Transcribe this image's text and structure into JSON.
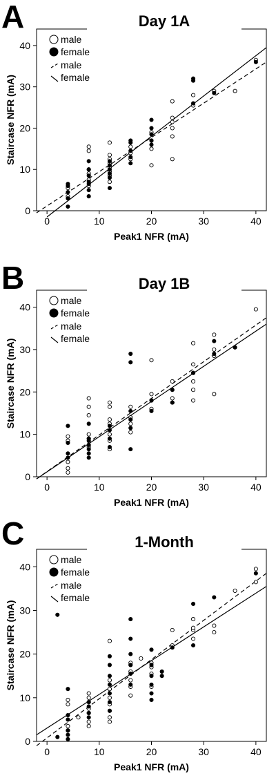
{
  "chart_data": [
    {
      "type": "scatter",
      "panel_label": "A",
      "title": "Day 1A",
      "xlabel": "Peak1 NFR (mA)",
      "ylabel": "Staircase NFR (mA)",
      "xlim": [
        -2,
        42
      ],
      "ylim": [
        0,
        44
      ],
      "xticks": [
        "0",
        "10",
        "20",
        "30",
        "40"
      ],
      "yticks": [
        "0",
        "10",
        "20",
        "30",
        "40"
      ],
      "legend": [
        "male",
        "female",
        "male",
        "female"
      ],
      "series": [
        {
          "name": "male",
          "marker": "open-circle",
          "points": [
            [
              4,
              3.5
            ],
            [
              4,
              5.5
            ],
            [
              8,
              6
            ],
            [
              8,
              7.5
            ],
            [
              8,
              9
            ],
            [
              8,
              10
            ],
            [
              8,
              14.5
            ],
            [
              8,
              15.5
            ],
            [
              12,
              7
            ],
            [
              12,
              8.5
            ],
            [
              12,
              9.5
            ],
            [
              12,
              10.5
            ],
            [
              12,
              11.5
            ],
            [
              12,
              12.5
            ],
            [
              12,
              13.5
            ],
            [
              12,
              16.5
            ],
            [
              16,
              12.5
            ],
            [
              16,
              14
            ],
            [
              16,
              15.5
            ],
            [
              20,
              11
            ],
            [
              20,
              15
            ],
            [
              20,
              17
            ],
            [
              20,
              19
            ],
            [
              24,
              12.5
            ],
            [
              24,
              18
            ],
            [
              24,
              20
            ],
            [
              24,
              21.5
            ],
            [
              24,
              22.5
            ],
            [
              24,
              26.5
            ],
            [
              28,
              25.5
            ],
            [
              28,
              28
            ],
            [
              32,
              29
            ],
            [
              36,
              29
            ],
            [
              40,
              36.5
            ]
          ]
        },
        {
          "name": "female",
          "marker": "filled-circle",
          "points": [
            [
              4,
              1
            ],
            [
              4,
              3
            ],
            [
              4,
              4.5
            ],
            [
              4,
              6
            ],
            [
              4,
              6.5
            ],
            [
              8,
              3.5
            ],
            [
              8,
              5
            ],
            [
              8,
              6.5
            ],
            [
              8,
              7
            ],
            [
              8,
              8.5
            ],
            [
              8,
              10
            ],
            [
              8,
              12
            ],
            [
              12,
              5.5
            ],
            [
              12,
              8
            ],
            [
              12,
              9
            ],
            [
              12,
              10
            ],
            [
              12,
              11
            ],
            [
              12,
              12
            ],
            [
              16,
              11.5
            ],
            [
              16,
              13
            ],
            [
              16,
              14.5
            ],
            [
              16,
              16.5
            ],
            [
              16,
              17
            ],
            [
              20,
              16
            ],
            [
              20,
              17
            ],
            [
              20,
              18.5
            ],
            [
              20,
              20
            ],
            [
              20,
              22
            ],
            [
              28,
              26
            ],
            [
              28,
              31.5
            ],
            [
              28,
              32
            ],
            [
              32,
              28.5
            ],
            [
              40,
              36
            ]
          ]
        }
      ],
      "fit_lines": [
        {
          "name": "male",
          "style": "dashed",
          "x": [
            -2,
            42
          ],
          "y": [
            -0.5,
            36
          ]
        },
        {
          "name": "female",
          "style": "solid",
          "x": [
            0,
            42
          ],
          "y": [
            -1.5,
            39.5
          ]
        }
      ]
    },
    {
      "type": "scatter",
      "panel_label": "B",
      "title": "Day 1B",
      "xlabel": "Peak1 NFR (mA)",
      "ylabel": "Staircase NFR (mA)",
      "xlim": [
        -2,
        42
      ],
      "ylim": [
        0,
        44
      ],
      "xticks": [
        "0",
        "10",
        "20",
        "30",
        "40"
      ],
      "yticks": [
        "0",
        "10",
        "20",
        "30",
        "40"
      ],
      "legend": [
        "male",
        "female",
        "male",
        "female"
      ],
      "series": [
        {
          "name": "male",
          "marker": "open-circle",
          "points": [
            [
              4,
              1
            ],
            [
              4,
              2
            ],
            [
              4,
              3.5
            ],
            [
              4,
              8.5
            ],
            [
              4,
              9.5
            ],
            [
              8,
              7
            ],
            [
              8,
              9
            ],
            [
              8,
              10
            ],
            [
              8,
              14.5
            ],
            [
              8,
              16.5
            ],
            [
              8,
              18.5
            ],
            [
              12,
              6.5
            ],
            [
              12,
              8.5
            ],
            [
              12,
              10
            ],
            [
              12,
              12.5
            ],
            [
              12,
              13.5
            ],
            [
              12,
              16.5
            ],
            [
              12,
              17.5
            ],
            [
              16,
              10.5
            ],
            [
              16,
              12.5
            ],
            [
              16,
              14
            ],
            [
              16,
              16.5
            ],
            [
              20,
              16
            ],
            [
              20,
              18
            ],
            [
              20,
              19.5
            ],
            [
              20,
              27.5
            ],
            [
              24,
              17.5
            ],
            [
              24,
              18.5
            ],
            [
              24,
              22.5
            ],
            [
              28,
              18
            ],
            [
              28,
              20.5
            ],
            [
              28,
              22.5
            ],
            [
              28,
              24.5
            ],
            [
              28,
              26.5
            ],
            [
              28,
              31.5
            ],
            [
              32,
              19.5
            ],
            [
              32,
              28.5
            ],
            [
              32,
              30
            ],
            [
              32,
              33.5
            ],
            [
              40,
              39.5
            ]
          ]
        },
        {
          "name": "female",
          "marker": "filled-circle",
          "points": [
            [
              4,
              4.5
            ],
            [
              4,
              5.5
            ],
            [
              4,
              8
            ],
            [
              4,
              12
            ],
            [
              8,
              4.5
            ],
            [
              8,
              5.5
            ],
            [
              8,
              6.5
            ],
            [
              8,
              7.5
            ],
            [
              8,
              8.5
            ],
            [
              8,
              9
            ],
            [
              8,
              12.5
            ],
            [
              12,
              7
            ],
            [
              12,
              9
            ],
            [
              12,
              11
            ],
            [
              12,
              12
            ],
            [
              16,
              6.5
            ],
            [
              16,
              11.5
            ],
            [
              16,
              13.5
            ],
            [
              16,
              15.5
            ],
            [
              16,
              27
            ],
            [
              16,
              29
            ],
            [
              20,
              15.5
            ],
            [
              20,
              18
            ],
            [
              24,
              17.5
            ],
            [
              24,
              20.5
            ],
            [
              28,
              24.5
            ],
            [
              32,
              29
            ],
            [
              32,
              32
            ],
            [
              36,
              30.5
            ]
          ]
        }
      ],
      "fit_lines": [
        {
          "name": "male",
          "style": "dashed",
          "x": [
            -2,
            42
          ],
          "y": [
            -0.5,
            37.5
          ]
        },
        {
          "name": "female",
          "style": "solid",
          "x": [
            -2,
            42
          ],
          "y": [
            -0.5,
            36
          ]
        }
      ]
    },
    {
      "type": "scatter",
      "panel_label": "C",
      "title": "1-Month",
      "xlabel": "Peak1 NFR (mA)",
      "ylabel": "Staircase NFR (mA)",
      "xlim": [
        -2,
        42
      ],
      "ylim": [
        0,
        44
      ],
      "xticks": [
        "0",
        "10",
        "20",
        "30",
        "40"
      ],
      "yticks": [
        "0",
        "10",
        "20",
        "30",
        "40"
      ],
      "legend": [
        "male",
        "female",
        "male",
        "female"
      ],
      "series": [
        {
          "name": "male",
          "marker": "open-circle",
          "points": [
            [
              4,
              2.5
            ],
            [
              4,
              3.5
            ],
            [
              4,
              8.5
            ],
            [
              4,
              9.5
            ],
            [
              6,
              5.5
            ],
            [
              8,
              3.5
            ],
            [
              8,
              4.5
            ],
            [
              8,
              6.5
            ],
            [
              8,
              7.5
            ],
            [
              8,
              9
            ],
            [
              8,
              10
            ],
            [
              8,
              11
            ],
            [
              12,
              4.5
            ],
            [
              12,
              5.5
            ],
            [
              12,
              7
            ],
            [
              12,
              8.5
            ],
            [
              12,
              10
            ],
            [
              12,
              12
            ],
            [
              12,
              14
            ],
            [
              12,
              23
            ],
            [
              16,
              10.5
            ],
            [
              16,
              12.5
            ],
            [
              16,
              14
            ],
            [
              16,
              16
            ],
            [
              16,
              17.5
            ],
            [
              16,
              18
            ],
            [
              18,
              19
            ],
            [
              20,
              12.5
            ],
            [
              20,
              15.5
            ],
            [
              20,
              17
            ],
            [
              20,
              18
            ],
            [
              24,
              22
            ],
            [
              24,
              25.5
            ],
            [
              28,
              23.5
            ],
            [
              28,
              25.5
            ],
            [
              28,
              26
            ],
            [
              28,
              28
            ],
            [
              32,
              25
            ],
            [
              32,
              26.5
            ],
            [
              36,
              34.5
            ],
            [
              40,
              36.5
            ],
            [
              40,
              39.5
            ]
          ]
        },
        {
          "name": "female",
          "marker": "filled-circle",
          "points": [
            [
              2,
              1
            ],
            [
              2,
              29
            ],
            [
              4,
              0.5
            ],
            [
              4,
              1.5
            ],
            [
              4,
              2.5
            ],
            [
              4,
              5
            ],
            [
              4,
              6
            ],
            [
              4,
              12
            ],
            [
              8,
              5.5
            ],
            [
              8,
              6.5
            ],
            [
              8,
              8
            ],
            [
              8,
              9
            ],
            [
              12,
              7
            ],
            [
              12,
              9
            ],
            [
              12,
              11
            ],
            [
              12,
              13
            ],
            [
              12,
              15
            ],
            [
              12,
              17.5
            ],
            [
              12,
              19.5
            ],
            [
              16,
              13
            ],
            [
              16,
              15.5
            ],
            [
              16,
              17.5
            ],
            [
              16,
              20
            ],
            [
              16,
              23.5
            ],
            [
              16,
              28
            ],
            [
              20,
              9.5
            ],
            [
              20,
              11
            ],
            [
              20,
              13
            ],
            [
              20,
              15
            ],
            [
              20,
              17.5
            ],
            [
              20,
              21
            ],
            [
              22,
              15
            ],
            [
              22,
              16
            ],
            [
              24,
              21.5
            ],
            [
              28,
              22
            ],
            [
              28,
              31.5
            ],
            [
              32,
              33
            ],
            [
              40,
              38.5
            ]
          ]
        }
      ],
      "fit_lines": [
        {
          "name": "male",
          "style": "dashed",
          "x": [
            -2,
            42
          ],
          "y": [
            -1,
            38.5
          ]
        },
        {
          "name": "female",
          "style": "solid",
          "x": [
            -2,
            42
          ],
          "y": [
            1.5,
            35.5
          ]
        }
      ]
    }
  ]
}
